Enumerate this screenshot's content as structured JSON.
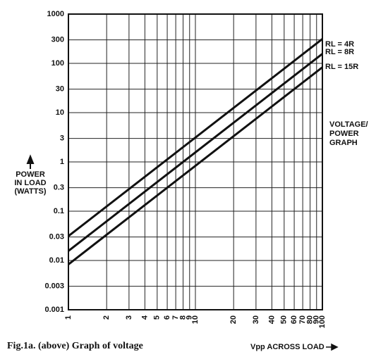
{
  "chart_data": {
    "type": "line",
    "x": [
      1,
      100
    ],
    "series": [
      {
        "name": "RL = 4R",
        "color": "#111",
        "values": [
          0.03125,
          312.5
        ]
      },
      {
        "name": "RL = 8R",
        "color": "#111",
        "values": [
          0.015625,
          156.25
        ]
      },
      {
        "name": "RL = 15R",
        "color": "#111",
        "values": [
          0.008333,
          83.33
        ]
      }
    ],
    "xlim": [
      1,
      100
    ],
    "ylim": [
      0.001,
      1000
    ],
    "xscale": "log",
    "yscale": "log",
    "grid": true,
    "xticks": [
      1,
      2,
      3,
      4,
      5,
      6,
      7,
      8,
      9,
      10,
      20,
      30,
      40,
      50,
      60,
      70,
      80,
      90,
      100
    ],
    "yticks": [
      0.001,
      0.003,
      0.01,
      0.03,
      0.1,
      0.3,
      1,
      3,
      10,
      30,
      100,
      300,
      1000
    ],
    "ylabel": [
      "POWER",
      "IN LOAD",
      "(WATTS)"
    ],
    "xlabel": "Vpp ACROSS LOAD",
    "annotation": [
      "VOLTAGE/",
      "POWER",
      "GRAPH"
    ],
    "caption": "Fig.1a. (above) Graph of voltage"
  }
}
